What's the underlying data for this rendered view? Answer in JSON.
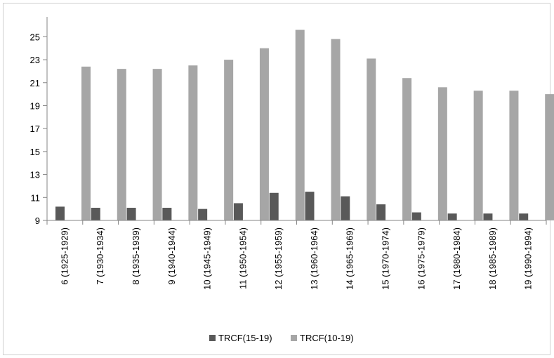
{
  "chart_data": {
    "type": "bar",
    "categories": [
      "6 (1925-1929)",
      "7 (1930-1934)",
      "8 (1935-1939)",
      "9 (1940-1944)",
      "10 (1945-1949)",
      "11 (1950-1954)",
      "12 (1955-1959)",
      "13 (1960-1964)",
      "14 (1965-1969)",
      "15 (1970-1974)",
      "16 (1975-1979)",
      "17 (1980-1984)",
      "18 (1985-1989)",
      "19 (1990-1994)"
    ],
    "series": [
      {
        "name": "TRCF(15-19)",
        "color": "#595959",
        "values": [
          10.2,
          10.1,
          10.1,
          10.1,
          10.0,
          10.5,
          11.4,
          11.5,
          11.1,
          10.4,
          9.7,
          9.6,
          9.6,
          9.6
        ]
      },
      {
        "name": "TRCF(10-19)",
        "color": "#a6a6a6",
        "values": [
          22.4,
          22.2,
          22.2,
          22.5,
          23.0,
          24.0,
          25.6,
          24.8,
          23.1,
          21.4,
          20.6,
          20.3,
          20.3,
          20.0
        ]
      }
    ],
    "ylim": [
      9,
      26
    ],
    "yticks": [
      9,
      11,
      13,
      15,
      17,
      19,
      21,
      23,
      25
    ],
    "grid": false,
    "legend_position": "bottom",
    "title": "",
    "xlabel": "",
    "ylabel": ""
  }
}
